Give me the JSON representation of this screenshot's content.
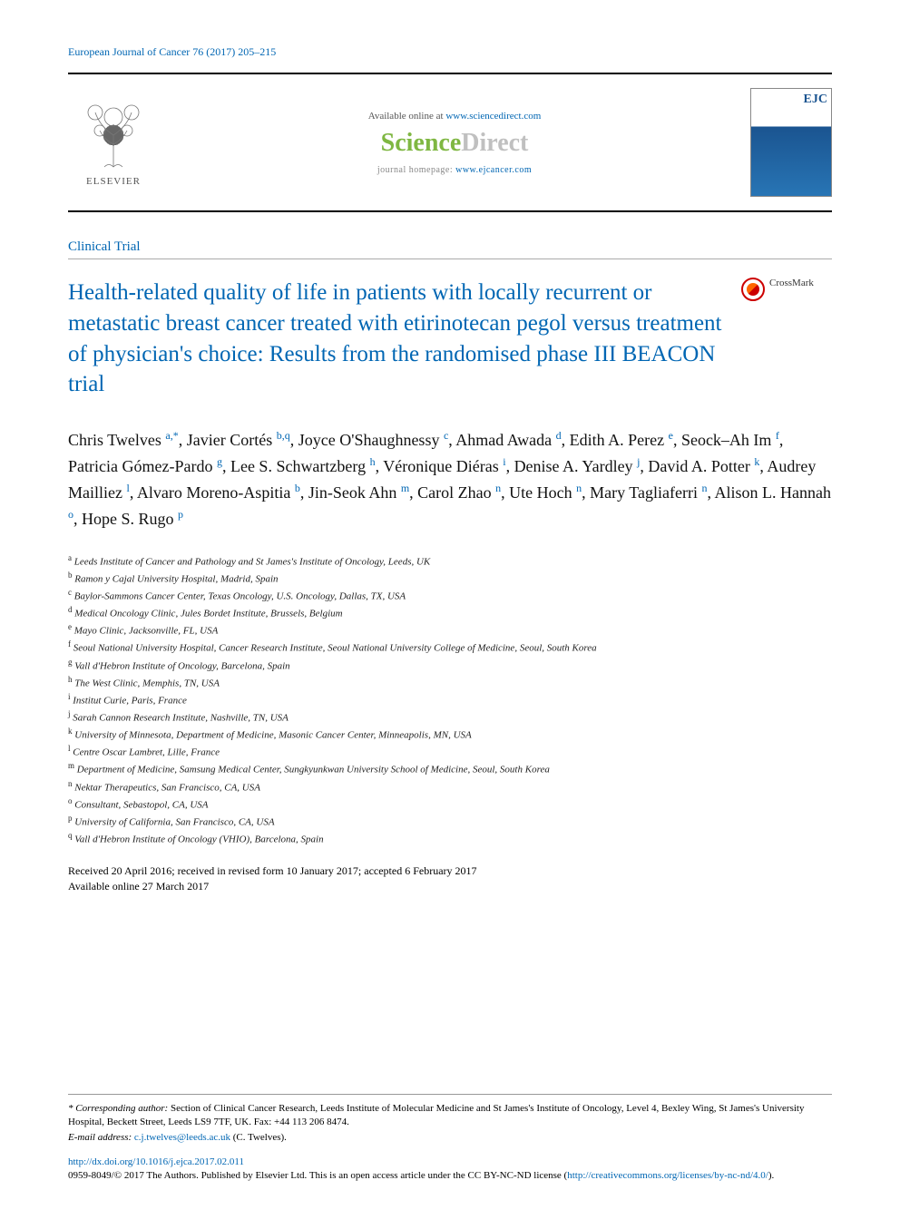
{
  "journal_ref": {
    "name": "European Journal of Cancer",
    "vol": "76 (2017) 205–215"
  },
  "header": {
    "available_prefix": "Available online at ",
    "available_url": "www.sciencedirect.com",
    "sd_sci": "Science",
    "sd_direct": "Direct",
    "jh_label": "journal homepage: ",
    "jh_url": "www.ejcancer.com",
    "elsevier": "ELSEVIER",
    "ejc": "EJC"
  },
  "article_type": "Clinical Trial",
  "title": "Health-related quality of life in patients with locally recurrent or metastatic breast cancer treated with etirinotecan pegol versus treatment of physician's choice: Results from the randomised phase III BEACON trial",
  "crossmark": "CrossMark",
  "authors": [
    {
      "name": "Chris Twelves",
      "sup": "a,*"
    },
    {
      "name": "Javier Cortés",
      "sup": "b,q"
    },
    {
      "name": "Joyce O'Shaughnessy",
      "sup": "c"
    },
    {
      "name": "Ahmad Awada",
      "sup": "d"
    },
    {
      "name": "Edith A. Perez",
      "sup": "e"
    },
    {
      "name": "Seock–Ah Im",
      "sup": "f"
    },
    {
      "name": "Patricia Gómez-Pardo",
      "sup": "g"
    },
    {
      "name": "Lee S. Schwartzberg",
      "sup": "h"
    },
    {
      "name": "Véronique Diéras",
      "sup": "i"
    },
    {
      "name": "Denise A. Yardley",
      "sup": "j"
    },
    {
      "name": "David A. Potter",
      "sup": "k"
    },
    {
      "name": "Audrey Mailliez",
      "sup": "l"
    },
    {
      "name": "Alvaro Moreno-Aspitia",
      "sup": "b"
    },
    {
      "name": "Jin-Seok Ahn",
      "sup": "m"
    },
    {
      "name": "Carol Zhao",
      "sup": "n"
    },
    {
      "name": "Ute Hoch",
      "sup": "n"
    },
    {
      "name": "Mary Tagliaferri",
      "sup": "n"
    },
    {
      "name": "Alison L. Hannah",
      "sup": "o"
    },
    {
      "name": "Hope S. Rugo",
      "sup": "p"
    }
  ],
  "affiliations": [
    {
      "key": "a",
      "text": "Leeds Institute of Cancer and Pathology and St James's Institute of Oncology, Leeds, UK"
    },
    {
      "key": "b",
      "text": "Ramon y Cajal University Hospital, Madrid, Spain"
    },
    {
      "key": "c",
      "text": "Baylor-Sammons Cancer Center, Texas Oncology, U.S. Oncology, Dallas, TX, USA"
    },
    {
      "key": "d",
      "text": "Medical Oncology Clinic, Jules Bordet Institute, Brussels, Belgium"
    },
    {
      "key": "e",
      "text": "Mayo Clinic, Jacksonville, FL, USA"
    },
    {
      "key": "f",
      "text": "Seoul National University Hospital, Cancer Research Institute, Seoul National University College of Medicine, Seoul, South Korea"
    },
    {
      "key": "g",
      "text": "Vall d'Hebron Institute of Oncology, Barcelona, Spain"
    },
    {
      "key": "h",
      "text": "The West Clinic, Memphis, TN, USA"
    },
    {
      "key": "i",
      "text": "Institut Curie, Paris, France"
    },
    {
      "key": "j",
      "text": "Sarah Cannon Research Institute, Nashville, TN, USA"
    },
    {
      "key": "k",
      "text": "University of Minnesota, Department of Medicine, Masonic Cancer Center, Minneapolis, MN, USA"
    },
    {
      "key": "l",
      "text": "Centre Oscar Lambret, Lille, France"
    },
    {
      "key": "m",
      "text": "Department of Medicine, Samsung Medical Center, Sungkyunkwan University School of Medicine, Seoul, South Korea"
    },
    {
      "key": "n",
      "text": "Nektar Therapeutics, San Francisco, CA, USA"
    },
    {
      "key": "o",
      "text": "Consultant, Sebastopol, CA, USA"
    },
    {
      "key": "p",
      "text": "University of California, San Francisco, CA, USA"
    },
    {
      "key": "q",
      "text": "Vall d'Hebron Institute of Oncology (VHIO), Barcelona, Spain"
    }
  ],
  "dates": {
    "line1": "Received 20 April 2016; received in revised form 10 January 2017; accepted 6 February 2017",
    "line2": "Available online 27 March 2017"
  },
  "corresponding": {
    "label": "* Corresponding author:",
    "text": " Section of Clinical Cancer Research, Leeds Institute of Molecular Medicine and St James's Institute of Oncology, Level 4, Bexley Wing, St James's University Hospital, Beckett Street, Leeds LS9 7TF, UK. Fax: +44 113 206 8474.",
    "email_label": "E-mail address: ",
    "email": "c.j.twelves@leeds.ac.uk",
    "email_suffix": " (C. Twelves)."
  },
  "doi": {
    "url": "http://dx.doi.org/10.1016/j.ejca.2017.02.011",
    "issn_line": "0959-8049/© 2017 The Authors. Published by Elsevier Ltd. This is an open access article under the CC BY-NC-ND license (",
    "license_url": "http://creativecommons.org/licenses/by-nc-nd/4.0/",
    "close": ")."
  },
  "colors": {
    "link": "#0066b3",
    "sd_green": "#7fb742",
    "sd_grey": "#c0c0c0",
    "text": "#000000",
    "border": "#000000"
  }
}
